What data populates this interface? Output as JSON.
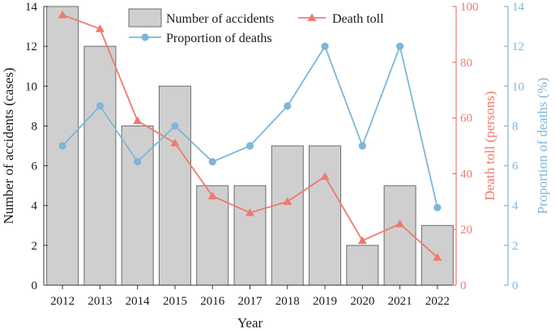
{
  "chart_data": {
    "type": "bar+line",
    "categories": [
      "2012",
      "2013",
      "2014",
      "2015",
      "2016",
      "2017",
      "2018",
      "2019",
      "2020",
      "2021",
      "2022"
    ],
    "xlabel": "Year",
    "bars": {
      "name": "Number of accidents",
      "values": [
        14,
        12,
        8,
        10,
        5,
        5,
        7,
        7,
        2,
        5,
        3
      ],
      "axis_label": "Number of accidents (cases)",
      "ylim": [
        0,
        14
      ],
      "ticks": [
        0,
        2,
        4,
        6,
        8,
        10,
        12,
        14
      ],
      "color": "#cfcfcf",
      "edge_color": "#6b6b6b"
    },
    "lines": [
      {
        "name": "Death toll",
        "values": [
          97,
          92,
          59,
          51,
          32,
          26,
          30,
          39,
          16,
          22,
          10
        ],
        "axis_label": "Death toll (persons)",
        "ylim": [
          0,
          100
        ],
        "ticks": [
          0,
          20,
          40,
          60,
          80,
          100
        ],
        "color": "#ef7a6d",
        "marker": "triangle"
      },
      {
        "name": "Proportion of deaths",
        "values": [
          7,
          9,
          6.2,
          8,
          6.2,
          7,
          9,
          12,
          7,
          12,
          3.9
        ],
        "axis_label": "Proportion of deaths (%)",
        "ylim": [
          0,
          14
        ],
        "ticks": [
          0,
          2,
          4,
          6,
          8,
          10,
          12,
          14
        ],
        "color": "#7eb6d9",
        "marker": "circle"
      }
    ],
    "legend": [
      "Number of accidents",
      "Death toll",
      "Proportion of deaths"
    ],
    "legend_position": "top-center"
  }
}
